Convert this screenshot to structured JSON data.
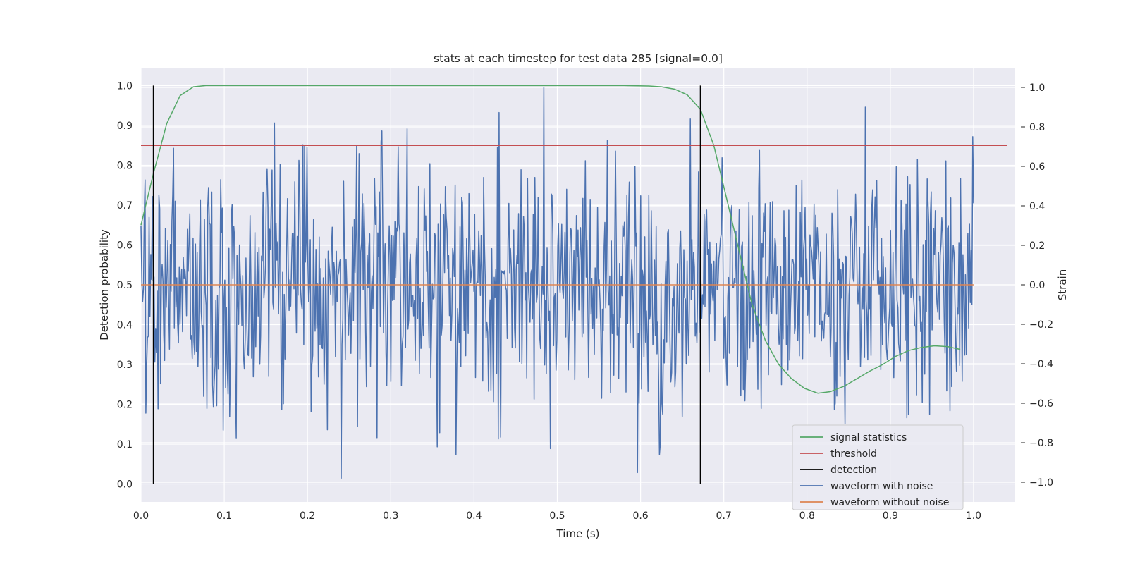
{
  "chart_data": {
    "type": "line",
    "title": "stats at each timestep for test data 285 [signal=0.0]",
    "xlabel": "Time (s)",
    "ylabel": "Detection probability",
    "y2label": "Strain",
    "xlim": [
      0.0,
      1.05
    ],
    "ylim": [
      -0.045,
      1.045
    ],
    "y2lim": [
      -1.1,
      1.1
    ],
    "xticks": [
      "0.0",
      "0.1",
      "0.2",
      "0.3",
      "0.4",
      "0.5",
      "0.6",
      "0.7",
      "0.8",
      "0.9",
      "1.0"
    ],
    "yticks": [
      "0.0",
      "0.1",
      "0.2",
      "0.3",
      "0.4",
      "0.5",
      "0.6",
      "0.7",
      "0.8",
      "0.9",
      "1.0"
    ],
    "y2ticks": [
      "−1.0",
      "−0.8",
      "−0.6",
      "−0.4",
      "−0.2",
      "0.0",
      "0.2",
      "0.4",
      "0.6",
      "0.8",
      "1.0"
    ],
    "grid": true,
    "legend_position": "lower-right",
    "series": [
      {
        "name": "signal statistics",
        "color": "#55a868",
        "axis": "left",
        "x": [
          0.0,
          0.015,
          0.031,
          0.047,
          0.063,
          0.078,
          0.094,
          0.11,
          0.2,
          0.3,
          0.4,
          0.5,
          0.58,
          0.61,
          0.625,
          0.641,
          0.656,
          0.672,
          0.688,
          0.703,
          0.719,
          0.734,
          0.75,
          0.766,
          0.781,
          0.797,
          0.813,
          0.828,
          0.844,
          0.859,
          0.875,
          0.891,
          0.906,
          0.922,
          0.938,
          0.953,
          0.969,
          0.984
        ],
        "y": [
          0.65,
          0.78,
          0.905,
          0.975,
          0.997,
          1.0,
          1.0,
          1.0,
          1.0,
          1.0,
          1.0,
          1.0,
          1.0,
          0.999,
          0.997,
          0.991,
          0.977,
          0.94,
          0.85,
          0.72,
          0.58,
          0.45,
          0.36,
          0.3,
          0.265,
          0.24,
          0.228,
          0.232,
          0.245,
          0.263,
          0.283,
          0.3,
          0.32,
          0.335,
          0.343,
          0.347,
          0.345,
          0.338
        ]
      },
      {
        "name": "threshold",
        "color": "#c44e52",
        "axis": "left",
        "x": [
          0.0,
          1.04
        ],
        "y": [
          0.85,
          0.85
        ]
      },
      {
        "name": "detection",
        "color": "#000000",
        "axis": "left",
        "segments": [
          {
            "x": 0.015,
            "y": [
              0.0,
              1.0
            ]
          },
          {
            "x": 0.672,
            "y": [
              0.0,
              1.0
            ]
          }
        ]
      },
      {
        "name": "waveform with noise",
        "color": "#4c72b0",
        "axis": "right",
        "x_range": [
          0.0,
          1.0
        ],
        "points": 1024,
        "noise_std": 0.3,
        "seed": 285,
        "highlights": [
          {
            "x": 0.006,
            "y": -0.65
          },
          {
            "x": 0.16,
            "y": 0.82
          },
          {
            "x": 0.195,
            "y": 0.71
          },
          {
            "x": 0.24,
            "y": -0.98
          },
          {
            "x": 0.32,
            "y": 0.79
          },
          {
            "x": 0.378,
            "y": -0.86
          },
          {
            "x": 0.484,
            "y": 1.0
          },
          {
            "x": 0.492,
            "y": -0.83
          },
          {
            "x": 0.623,
            "y": -0.86
          },
          {
            "x": 0.66,
            "y": 0.84
          },
          {
            "x": 0.87,
            "y": 0.9
          }
        ]
      },
      {
        "name": "waveform without noise",
        "color": "#dd8452",
        "axis": "right",
        "x": [
          0.0,
          1.0
        ],
        "y": [
          0.0,
          0.0
        ]
      }
    ]
  }
}
